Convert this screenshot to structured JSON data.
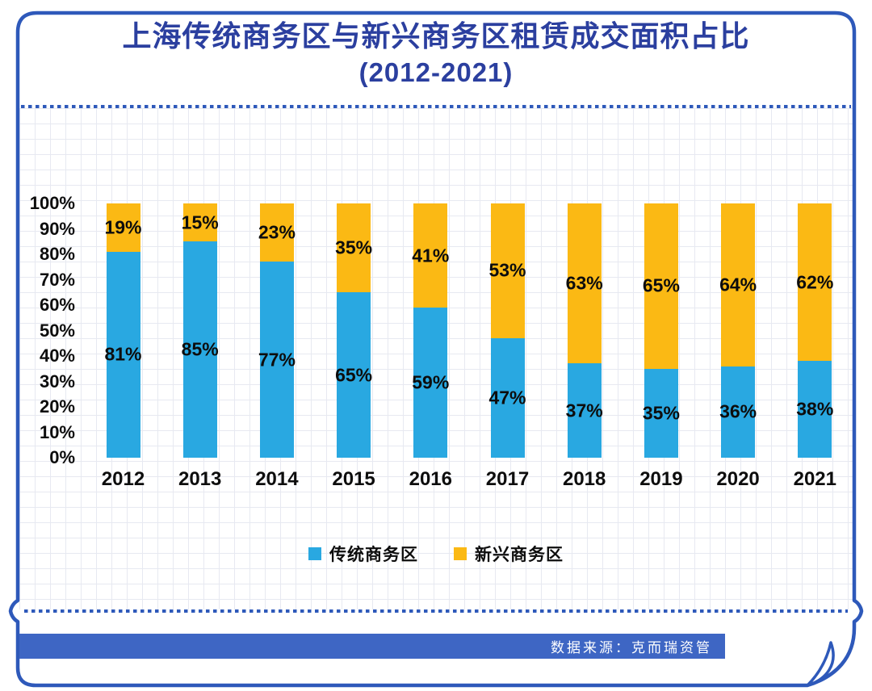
{
  "header": {
    "title_line1": "上海传统商务区与新兴商务区租赁成交面积占比",
    "title_line2": "(2012-2021)"
  },
  "chart_data": {
    "type": "bar",
    "stacked": true,
    "title": "上海传统商务区与新兴商务区租赁成交面积占比 (2012-2021)",
    "categories": [
      "2012",
      "2013",
      "2014",
      "2015",
      "2016",
      "2017",
      "2018",
      "2019",
      "2020",
      "2021"
    ],
    "series": [
      {
        "name": "传统商务区",
        "key": "traditional",
        "color": "#29A8E1",
        "values": [
          81,
          85,
          77,
          65,
          59,
          47,
          37,
          35,
          36,
          38
        ]
      },
      {
        "name": "新兴商务区",
        "key": "emerging",
        "color": "#FBB914",
        "values": [
          19,
          15,
          23,
          35,
          41,
          53,
          63,
          65,
          64,
          62
        ]
      }
    ],
    "value_suffix": "%",
    "y_ticks": [
      "100%",
      "90%",
      "80%",
      "70%",
      "60%",
      "50%",
      "40%",
      "30%",
      "20%",
      "10%",
      "0%"
    ],
    "ylim": [
      0,
      100
    ],
    "grid": true,
    "legend_position": "bottom"
  },
  "footer": {
    "source_label": "数据来源：克而瑞资管"
  },
  "colors": {
    "traditional_blue": "#29A8E1",
    "emerging_yellow": "#FBB914",
    "title_blue": "#2B3F9F",
    "frame_blue": "#2E59BA",
    "footer_band_blue": "#3E66C4",
    "label_black": "#0D0D0D",
    "grid_line": "#E7E9F1"
  }
}
